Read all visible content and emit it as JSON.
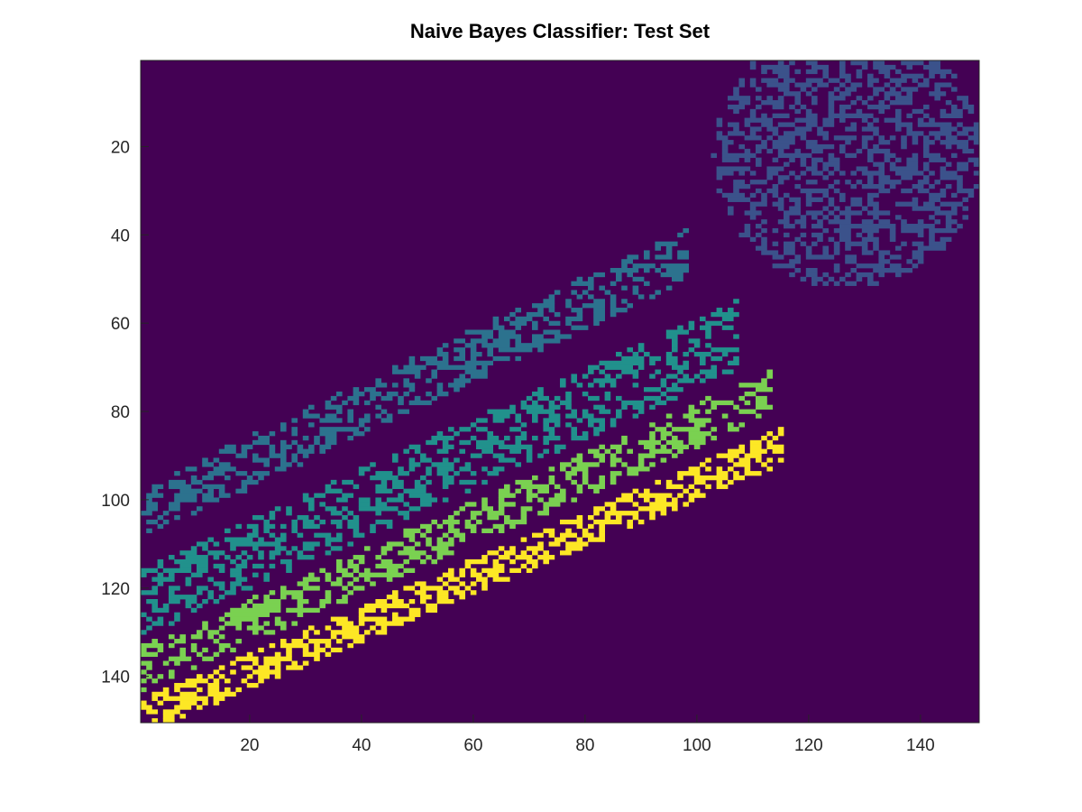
{
  "chart_data": {
    "type": "heatmap",
    "title": "Naive Bayes Classifier: Test Set",
    "xlabel": "",
    "ylabel": "",
    "xlim": [
      0.5,
      150.5
    ],
    "ylim": [
      0.5,
      150.5
    ],
    "y_reversed": true,
    "grid": false,
    "colormap": "viridis",
    "color_levels": [
      "#440154",
      "#3b528b",
      "#2c728e",
      "#21918c",
      "#7ad151",
      "#fde725"
    ],
    "x_ticks": [
      20,
      40,
      60,
      80,
      100,
      120,
      140
    ],
    "y_ticks": [
      20,
      40,
      60,
      80,
      100,
      120,
      140
    ],
    "background_class": 0,
    "regions": [
      {
        "class": 1,
        "color": "#3b528b",
        "shape": "blob",
        "center": [
          127,
          22
        ],
        "radius_x": 24,
        "radius_y": 30,
        "density": 0.45
      },
      {
        "class": 2,
        "color": "#2c728e",
        "shape": "band",
        "start": [
          1,
          103
        ],
        "end": [
          97,
          45
        ],
        "half_width": 6,
        "density": 0.42
      },
      {
        "class": 3,
        "color": "#21918c",
        "shape": "band",
        "start": [
          1,
          123
        ],
        "end": [
          105,
          64
        ],
        "half_width": 8,
        "density": 0.42
      },
      {
        "class": 4,
        "color": "#7ad151",
        "shape": "band",
        "start": [
          1,
          138
        ],
        "end": [
          111,
          77
        ],
        "half_width": 5,
        "density": 0.45
      },
      {
        "class": 5,
        "color": "#fde725",
        "shape": "band",
        "start": [
          3,
          148
        ],
        "end": [
          113,
          89
        ],
        "half_width": 4,
        "density": 0.55
      }
    ]
  }
}
